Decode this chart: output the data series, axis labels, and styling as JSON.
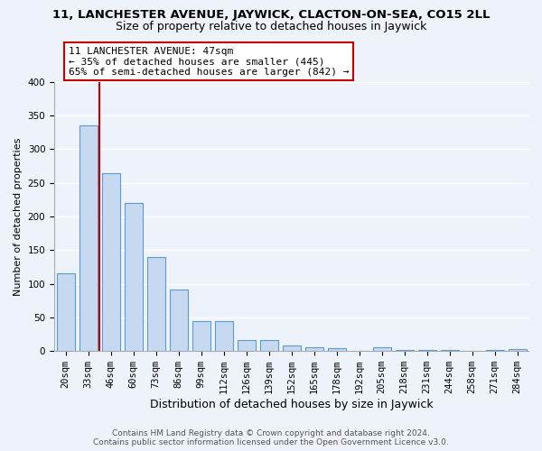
{
  "title": "11, LANCHESTER AVENUE, JAYWICK, CLACTON-ON-SEA, CO15 2LL",
  "subtitle": "Size of property relative to detached houses in Jaywick",
  "xlabel": "Distribution of detached houses by size in Jaywick",
  "ylabel": "Number of detached properties",
  "categories": [
    "20sqm",
    "33sqm",
    "46sqm",
    "60sqm",
    "73sqm",
    "86sqm",
    "99sqm",
    "112sqm",
    "126sqm",
    "139sqm",
    "152sqm",
    "165sqm",
    "178sqm",
    "192sqm",
    "205sqm",
    "218sqm",
    "231sqm",
    "244sqm",
    "258sqm",
    "271sqm",
    "284sqm"
  ],
  "values": [
    115,
    335,
    265,
    220,
    140,
    92,
    45,
    45,
    17,
    17,
    9,
    5,
    4,
    0,
    6,
    1,
    1,
    1,
    0,
    1,
    3
  ],
  "bar_color": "#c6d9f0",
  "bar_edge_color": "#5b9bd5",
  "vline_bar_index": 1,
  "vline_color": "#c00000",
  "annotation_line1": "11 LANCHESTER AVENUE: 47sqm",
  "annotation_line2": "← 35% of detached houses are smaller (445)",
  "annotation_line3": "65% of semi-detached houses are larger (842) →",
  "annotation_box_color": "#c00000",
  "ylim": [
    0,
    400
  ],
  "yticks": [
    0,
    50,
    100,
    150,
    200,
    250,
    300,
    350,
    400
  ],
  "background_color": "#eef2fa",
  "grid_color": "#ffffff",
  "footer": "Contains HM Land Registry data © Crown copyright and database right 2024.\nContains public sector information licensed under the Open Government Licence v3.0.",
  "title_fontsize": 9.5,
  "subtitle_fontsize": 9,
  "xlabel_fontsize": 9,
  "ylabel_fontsize": 8,
  "tick_fontsize": 7.5,
  "annotation_fontsize": 8,
  "footer_fontsize": 6.5
}
